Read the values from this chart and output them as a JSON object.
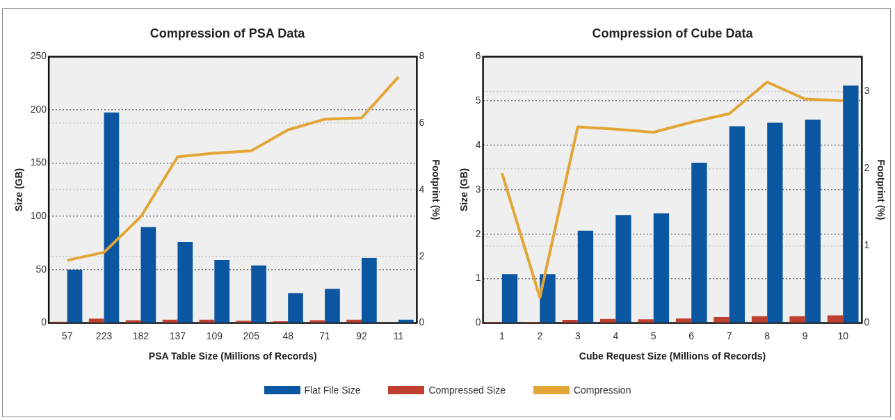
{
  "chart_data": [
    {
      "type": "bar",
      "title": "Compression of PSA Data",
      "xlabel": "PSA Table Size (Millions of Records)",
      "ylabel": "Size (GB)",
      "y2label": "Footprint (%)",
      "categories": [
        "57",
        "223",
        "182",
        "137",
        "109",
        "205",
        "48",
        "71",
        "92",
        "11"
      ],
      "ylim": [
        0,
        250
      ],
      "yticks": [
        0,
        50,
        100,
        150,
        200,
        250
      ],
      "y2lim": [
        0,
        8
      ],
      "y2ticks": [
        0,
        2,
        4,
        6,
        8
      ],
      "grid": true,
      "legend": "bottom",
      "series": [
        {
          "name": "Flat File Size",
          "color": "#0a56a0",
          "values": [
            50,
            197.5,
            90,
            76,
            59,
            54,
            28,
            32,
            61,
            3
          ]
        },
        {
          "name": "Compressed Size",
          "color": "#c0402f",
          "values": [
            1,
            4,
            2.5,
            3,
            3,
            2,
            1.5,
            2.5,
            3,
            0
          ]
        },
        {
          "name": "Compression",
          "type": "line",
          "axis": "y2",
          "color": "#e3a535",
          "values": [
            1.88,
            2.12,
            3.19,
            4.99,
            5.1,
            5.17,
            5.8,
            6.12,
            6.16,
            7.39
          ]
        }
      ]
    },
    {
      "type": "bar",
      "title": "Compression of Cube Data",
      "xlabel": "Cube Request Size (Millions of Records)",
      "ylabel": "Size (GB)",
      "y2label": "Footprint (%)",
      "categories": [
        "1",
        "2",
        "3",
        "4",
        "5",
        "6",
        "7",
        "8",
        "9",
        "10"
      ],
      "ylim": [
        0,
        6
      ],
      "yticks": [
        0,
        1,
        2,
        3,
        4,
        5,
        6
      ],
      "y2lim": [
        0,
        3.45
      ],
      "y2ticks": [
        0,
        1,
        2,
        3
      ],
      "grid": true,
      "legend": "bottom",
      "series": [
        {
          "name": "Flat File Size",
          "color": "#0a56a0",
          "values": [
            1.1,
            1.1,
            2.08,
            2.43,
            2.47,
            3.61,
            4.43,
            4.51,
            4.58,
            5.35
          ]
        },
        {
          "name": "Compressed Size",
          "color": "#c0402f",
          "values": [
            0.02,
            0.02,
            0.07,
            0.09,
            0.08,
            0.1,
            0.13,
            0.15,
            0.15,
            0.17
          ]
        },
        {
          "name": "Compression",
          "type": "line",
          "axis": "y2",
          "color": "#e3a535",
          "values": [
            1.94,
            0.33,
            2.54,
            2.51,
            2.47,
            2.6,
            2.71,
            3.12,
            2.9,
            2.88
          ]
        }
      ]
    }
  ]
}
